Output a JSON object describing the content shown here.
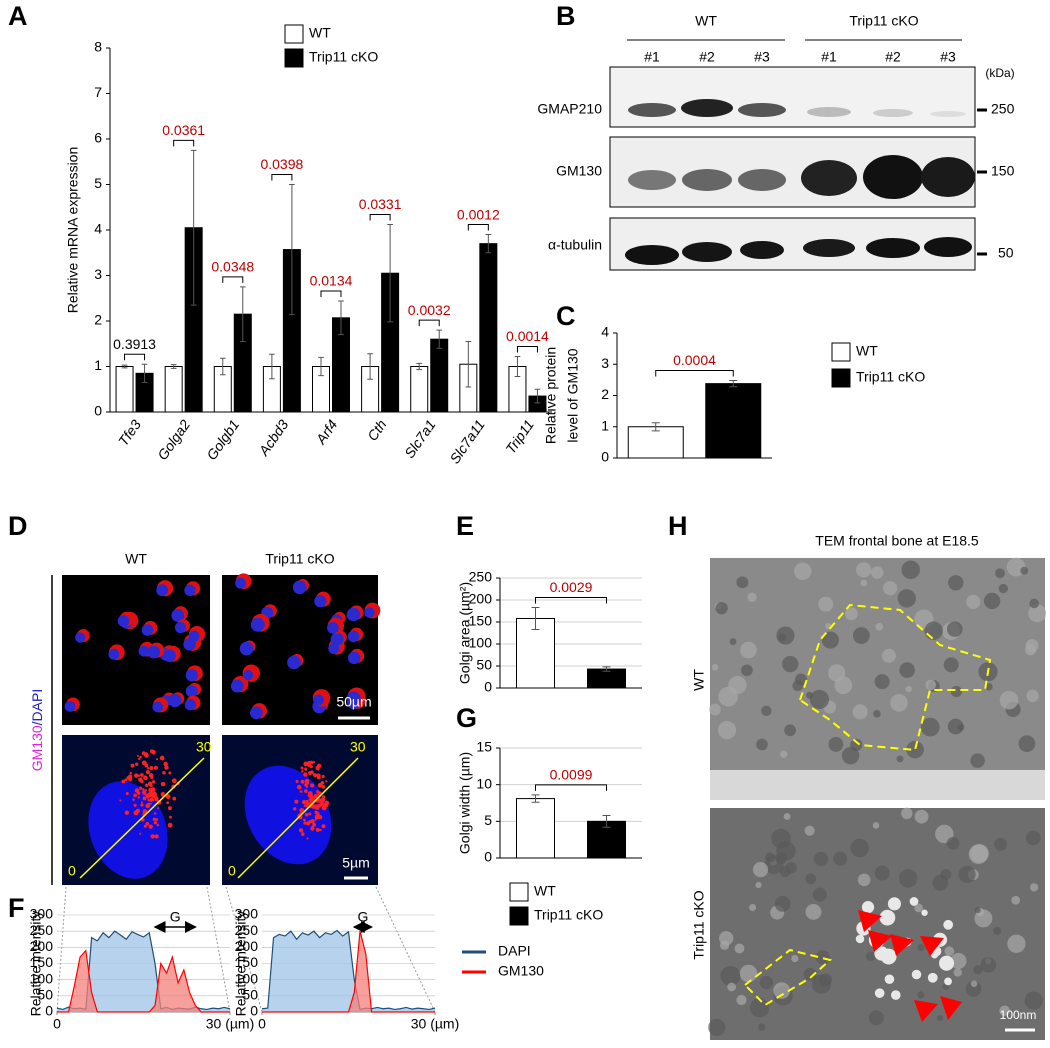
{
  "panel_letters": [
    "A",
    "B",
    "C",
    "D",
    "E",
    "F",
    "G",
    "H"
  ],
  "blot": {
    "groups": [
      "WT",
      "Trip11 cKO"
    ],
    "lanes": [
      "#1",
      "#2",
      "#3",
      "#1",
      "#2",
      "#3"
    ],
    "unit": "(kDa)",
    "proteins": [
      "GMAP210",
      "GM130",
      "α-tubulin"
    ],
    "markers": [
      "250",
      "150",
      "50"
    ]
  },
  "microscopy": {
    "columns": [
      "WT",
      "Trip11 cKO"
    ],
    "stain": [
      "GM130",
      "/DAPI"
    ],
    "scale_bars": [
      "50µm",
      "5µm"
    ],
    "line_ends": [
      "0",
      "30",
      "0",
      "30"
    ]
  },
  "tem": {
    "title": "TEM frontal bone at E18.5",
    "rows": [
      "WT",
      "Trip11 cKO"
    ],
    "scale_bar": "100nm"
  },
  "chart_data": [
    {
      "type": "bar",
      "ylabel": "Relative mRNA expression",
      "categories": [
        "Tfe3",
        "Golga2",
        "Golgb1",
        "Acbd3",
        "Arf4",
        "Cth",
        "Slc7a1",
        "Slc7a11",
        "Trip11"
      ],
      "series": [
        {
          "name": "WT",
          "color": "#ffffff",
          "values": [
            1,
            1,
            1,
            1,
            1,
            1,
            1,
            1.05,
            1
          ],
          "errors": [
            0.03,
            0.04,
            0.18,
            0.27,
            0.2,
            0.28,
            0.07,
            0.5,
            0.22
          ]
        },
        {
          "name": "Trip11 cKO",
          "color": "#000000",
          "values": [
            0.85,
            4.05,
            2.15,
            3.57,
            2.07,
            3.05,
            1.6,
            3.7,
            0.35
          ],
          "errors": [
            0.2,
            1.7,
            0.6,
            1.43,
            0.37,
            1.07,
            0.2,
            0.2,
            0.15
          ]
        }
      ],
      "annotations": [
        {
          "text": "0.3913",
          "color": "#000000"
        },
        {
          "text": "0.0361",
          "color": "#c00000"
        },
        {
          "text": "0.0348",
          "color": "#c00000"
        },
        {
          "text": "0.0398",
          "color": "#c00000"
        },
        {
          "text": "0.0134",
          "color": "#c00000"
        },
        {
          "text": "0.0331",
          "color": "#c00000"
        },
        {
          "text": "0.0032",
          "color": "#c00000"
        },
        {
          "text": "0.0012",
          "color": "#c00000"
        },
        {
          "text": "0.0014",
          "color": "#c00000"
        }
      ],
      "ylim": [
        0,
        8
      ],
      "yticks": [
        0,
        1,
        2,
        3,
        4,
        5,
        6,
        7,
        8
      ],
      "grid": false
    },
    {
      "type": "bar",
      "ylabel": [
        "Relative protein",
        "level of GM130"
      ],
      "series": [
        {
          "name": "WT",
          "color": "#ffffff",
          "values": [
            1.0
          ],
          "errors": [
            0.13
          ]
        },
        {
          "name": "Trip11 cKO",
          "color": "#000000",
          "values": [
            2.38
          ],
          "errors": [
            0.1
          ]
        }
      ],
      "annotations": [
        {
          "text": "0.0004",
          "color": "#c00000"
        }
      ],
      "ylim": [
        0,
        4
      ],
      "yticks": [
        0,
        1,
        2,
        3,
        4
      ],
      "grid": false
    },
    {
      "type": "bar",
      "ylabel": "Golgi area (µm²)",
      "series": [
        {
          "color": "#ffffff",
          "values": [
            158
          ],
          "errors": [
            25
          ]
        },
        {
          "color": "#000000",
          "values": [
            43
          ],
          "errors": [
            5
          ]
        }
      ],
      "annotations": [
        {
          "text": "0.0029",
          "color": "#c00000"
        }
      ],
      "ylim": [
        0,
        250
      ],
      "yticks": [
        0,
        50,
        100,
        150,
        200,
        250
      ],
      "grid": true
    },
    {
      "type": "bar",
      "ylabel": "Golgi width (µm)",
      "series": [
        {
          "name": "WT",
          "color": "#ffffff",
          "values": [
            8.1
          ],
          "errors": [
            0.5
          ]
        },
        {
          "name": "Trip11 cKO",
          "color": "#000000",
          "values": [
            5.0
          ],
          "errors": [
            0.8
          ]
        }
      ],
      "annotations": [
        {
          "text": "0.0099",
          "color": "#c00000"
        }
      ],
      "ylim": [
        0,
        15
      ],
      "yticks": [
        0,
        5,
        10,
        15
      ],
      "grid": true
    },
    {
      "type": "line",
      "ylabel": "Relative intensity",
      "x": [
        0,
        1,
        2,
        3,
        4,
        5,
        6,
        7,
        8,
        9,
        10,
        11,
        12,
        13,
        14,
        15,
        16,
        17,
        18,
        19,
        20,
        21,
        22,
        23,
        24,
        25,
        26,
        27,
        28,
        29,
        30
      ],
      "series": [
        {
          "name": "DAPI",
          "color": "#1f4e79",
          "fill": "#9dc3e6",
          "values": [
            12,
            8,
            15,
            10,
            12,
            8,
            230,
            220,
            245,
            230,
            250,
            238,
            225,
            248,
            240,
            232,
            245,
            150,
            10,
            14,
            8,
            12,
            10,
            9,
            15,
            10,
            8,
            12,
            10,
            14,
            10
          ]
        },
        {
          "name": "GM130",
          "color": "#ff0000",
          "fill": "#f4807a",
          "values": [
            0,
            0,
            0,
            80,
            170,
            190,
            60,
            0,
            0,
            0,
            0,
            0,
            0,
            0,
            0,
            0,
            0,
            20,
            150,
            120,
            170,
            90,
            130,
            60,
            20,
            0,
            0,
            0,
            0,
            0,
            0
          ]
        }
      ],
      "annotation": {
        "text": "G",
        "x": [
          17,
          24
        ]
      },
      "xlim": [
        0,
        30
      ],
      "xticks": [
        0,
        {
          "value": 30,
          "label": "30 (µm)"
        }
      ],
      "ylim": [
        0,
        300
      ],
      "yticks": [
        0,
        50,
        100,
        150,
        200,
        250,
        300
      ],
      "grid": true
    },
    {
      "type": "line",
      "ylabel": "Relative intensity",
      "x": [
        0,
        1,
        2,
        3,
        4,
        5,
        6,
        7,
        8,
        9,
        10,
        11,
        12,
        13,
        14,
        15,
        16,
        17,
        18,
        19,
        20,
        21,
        22,
        23,
        24,
        25,
        26,
        27,
        28,
        29,
        30
      ],
      "series": [
        {
          "color": "#1f4e79",
          "fill": "#9dc3e6",
          "values": [
            10,
            12,
            230,
            240,
            235,
            250,
            225,
            245,
            238,
            250,
            230,
            245,
            240,
            252,
            235,
            248,
            100,
            8,
            12,
            10,
            14,
            10,
            12,
            8,
            10,
            14,
            9,
            12,
            10,
            8,
            12
          ]
        },
        {
          "color": "#ff0000",
          "fill": "#f4807a",
          "values": [
            0,
            0,
            0,
            0,
            0,
            0,
            0,
            0,
            0,
            0,
            0,
            0,
            0,
            0,
            0,
            0,
            60,
            250,
            180,
            0,
            0,
            0,
            0,
            0,
            0,
            0,
            0,
            0,
            0,
            0,
            0
          ]
        }
      ],
      "annotation": {
        "text": "G",
        "x": [
          16,
          19
        ]
      },
      "xlim": [
        0,
        30
      ],
      "xticks": [
        0,
        {
          "value": 30,
          "label": "30 (µm)"
        }
      ],
      "ylim": [
        0,
        300
      ],
      "yticks": [
        0,
        50,
        100,
        150,
        200,
        250,
        300
      ],
      "grid": true
    }
  ]
}
